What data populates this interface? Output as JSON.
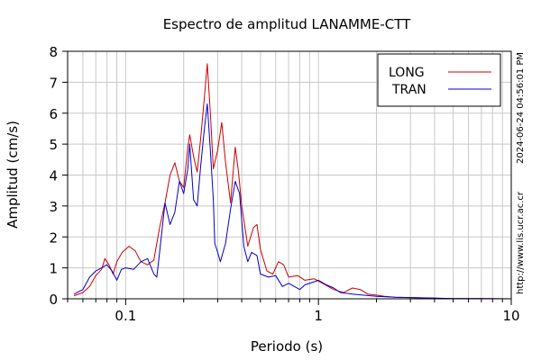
{
  "chart_data": {
    "type": "line",
    "title": "Espectro de amplitud LANAMME-CTT",
    "xlabel": "Periodo (s)",
    "ylabel": "Amplitud (cm/s)",
    "xscale": "log",
    "xlim": [
      0.05,
      10
    ],
    "ylim": [
      0,
      8
    ],
    "xticks": [
      0.1,
      1,
      10
    ],
    "xtick_labels": [
      "0.1",
      "1",
      "10"
    ],
    "yticks": [
      0,
      1,
      2,
      3,
      4,
      5,
      6,
      7,
      8
    ],
    "ytick_labels": [
      "0",
      "1",
      "2",
      "3",
      "4",
      "5",
      "6",
      "7",
      "8"
    ],
    "grid": true,
    "legend_position": "top-right",
    "side_labels": [
      "2024-06-24 04:56:01 PM",
      "http://www.lis.ucr.ac.cr"
    ],
    "series": [
      {
        "name": "LONG",
        "color": "#cc0000",
        "points": [
          [
            0.054,
            0.1
          ],
          [
            0.06,
            0.2
          ],
          [
            0.065,
            0.4
          ],
          [
            0.07,
            0.75
          ],
          [
            0.075,
            0.95
          ],
          [
            0.078,
            1.3
          ],
          [
            0.082,
            1.1
          ],
          [
            0.086,
            0.8
          ],
          [
            0.09,
            1.2
          ],
          [
            0.096,
            1.5
          ],
          [
            0.104,
            1.7
          ],
          [
            0.112,
            1.55
          ],
          [
            0.12,
            1.2
          ],
          [
            0.13,
            1.1
          ],
          [
            0.14,
            1.25
          ],
          [
            0.15,
            2.3
          ],
          [
            0.16,
            3.1
          ],
          [
            0.17,
            4.0
          ],
          [
            0.18,
            4.4
          ],
          [
            0.19,
            3.8
          ],
          [
            0.2,
            3.6
          ],
          [
            0.21,
            4.9
          ],
          [
            0.215,
            5.3
          ],
          [
            0.225,
            4.6
          ],
          [
            0.235,
            4.1
          ],
          [
            0.245,
            5.2
          ],
          [
            0.255,
            6.4
          ],
          [
            0.265,
            7.6
          ],
          [
            0.275,
            6.0
          ],
          [
            0.285,
            4.2
          ],
          [
            0.3,
            4.8
          ],
          [
            0.315,
            5.7
          ],
          [
            0.33,
            4.4
          ],
          [
            0.35,
            3.1
          ],
          [
            0.37,
            4.9
          ],
          [
            0.385,
            4.1
          ],
          [
            0.4,
            3.0
          ],
          [
            0.43,
            1.7
          ],
          [
            0.46,
            2.3
          ],
          [
            0.48,
            2.4
          ],
          [
            0.5,
            1.6
          ],
          [
            0.54,
            0.9
          ],
          [
            0.58,
            0.8
          ],
          [
            0.62,
            1.2
          ],
          [
            0.66,
            1.1
          ],
          [
            0.7,
            0.7
          ],
          [
            0.78,
            0.75
          ],
          [
            0.85,
            0.6
          ],
          [
            0.95,
            0.65
          ],
          [
            1.05,
            0.5
          ],
          [
            1.2,
            0.3
          ],
          [
            1.35,
            0.2
          ],
          [
            1.5,
            0.35
          ],
          [
            1.65,
            0.3
          ],
          [
            1.8,
            0.15
          ],
          [
            2.0,
            0.12
          ],
          [
            2.2,
            0.08
          ],
          [
            2.5,
            0.05
          ],
          [
            3.0,
            0.04
          ],
          [
            3.5,
            0.03
          ],
          [
            4.0,
            0.02
          ],
          [
            5.0,
            0.01
          ],
          [
            7.0,
            0.01
          ],
          [
            10.0,
            0.0
          ]
        ]
      },
      {
        "name": "TRAN",
        "color": "#0000cc",
        "points": [
          [
            0.054,
            0.15
          ],
          [
            0.06,
            0.3
          ],
          [
            0.065,
            0.7
          ],
          [
            0.07,
            0.9
          ],
          [
            0.075,
            1.0
          ],
          [
            0.08,
            1.1
          ],
          [
            0.085,
            0.9
          ],
          [
            0.09,
            0.6
          ],
          [
            0.095,
            0.95
          ],
          [
            0.1,
            1.0
          ],
          [
            0.11,
            0.95
          ],
          [
            0.12,
            1.2
          ],
          [
            0.13,
            1.3
          ],
          [
            0.14,
            0.8
          ],
          [
            0.145,
            0.7
          ],
          [
            0.15,
            1.5
          ],
          [
            0.16,
            3.1
          ],
          [
            0.17,
            2.4
          ],
          [
            0.18,
            2.8
          ],
          [
            0.19,
            3.8
          ],
          [
            0.2,
            3.4
          ],
          [
            0.21,
            4.2
          ],
          [
            0.215,
            5.0
          ],
          [
            0.225,
            3.2
          ],
          [
            0.235,
            3.0
          ],
          [
            0.245,
            4.3
          ],
          [
            0.255,
            5.4
          ],
          [
            0.265,
            6.3
          ],
          [
            0.275,
            4.8
          ],
          [
            0.285,
            3.2
          ],
          [
            0.29,
            1.8
          ],
          [
            0.3,
            1.5
          ],
          [
            0.31,
            1.2
          ],
          [
            0.33,
            1.8
          ],
          [
            0.35,
            2.9
          ],
          [
            0.37,
            3.8
          ],
          [
            0.39,
            3.4
          ],
          [
            0.41,
            1.7
          ],
          [
            0.43,
            1.2
          ],
          [
            0.45,
            1.5
          ],
          [
            0.48,
            1.4
          ],
          [
            0.5,
            0.8
          ],
          [
            0.55,
            0.7
          ],
          [
            0.6,
            0.75
          ],
          [
            0.65,
            0.4
          ],
          [
            0.7,
            0.5
          ],
          [
            0.8,
            0.3
          ],
          [
            0.85,
            0.45
          ],
          [
            0.95,
            0.55
          ],
          [
            1.0,
            0.6
          ],
          [
            1.1,
            0.45
          ],
          [
            1.2,
            0.35
          ],
          [
            1.3,
            0.2
          ],
          [
            1.5,
            0.15
          ],
          [
            1.7,
            0.12
          ],
          [
            2.0,
            0.08
          ],
          [
            2.5,
            0.05
          ],
          [
            3.0,
            0.04
          ],
          [
            4.0,
            0.02
          ],
          [
            5.0,
            0.01
          ],
          [
            7.0,
            0.01
          ],
          [
            10.0,
            0.0
          ]
        ]
      }
    ]
  }
}
